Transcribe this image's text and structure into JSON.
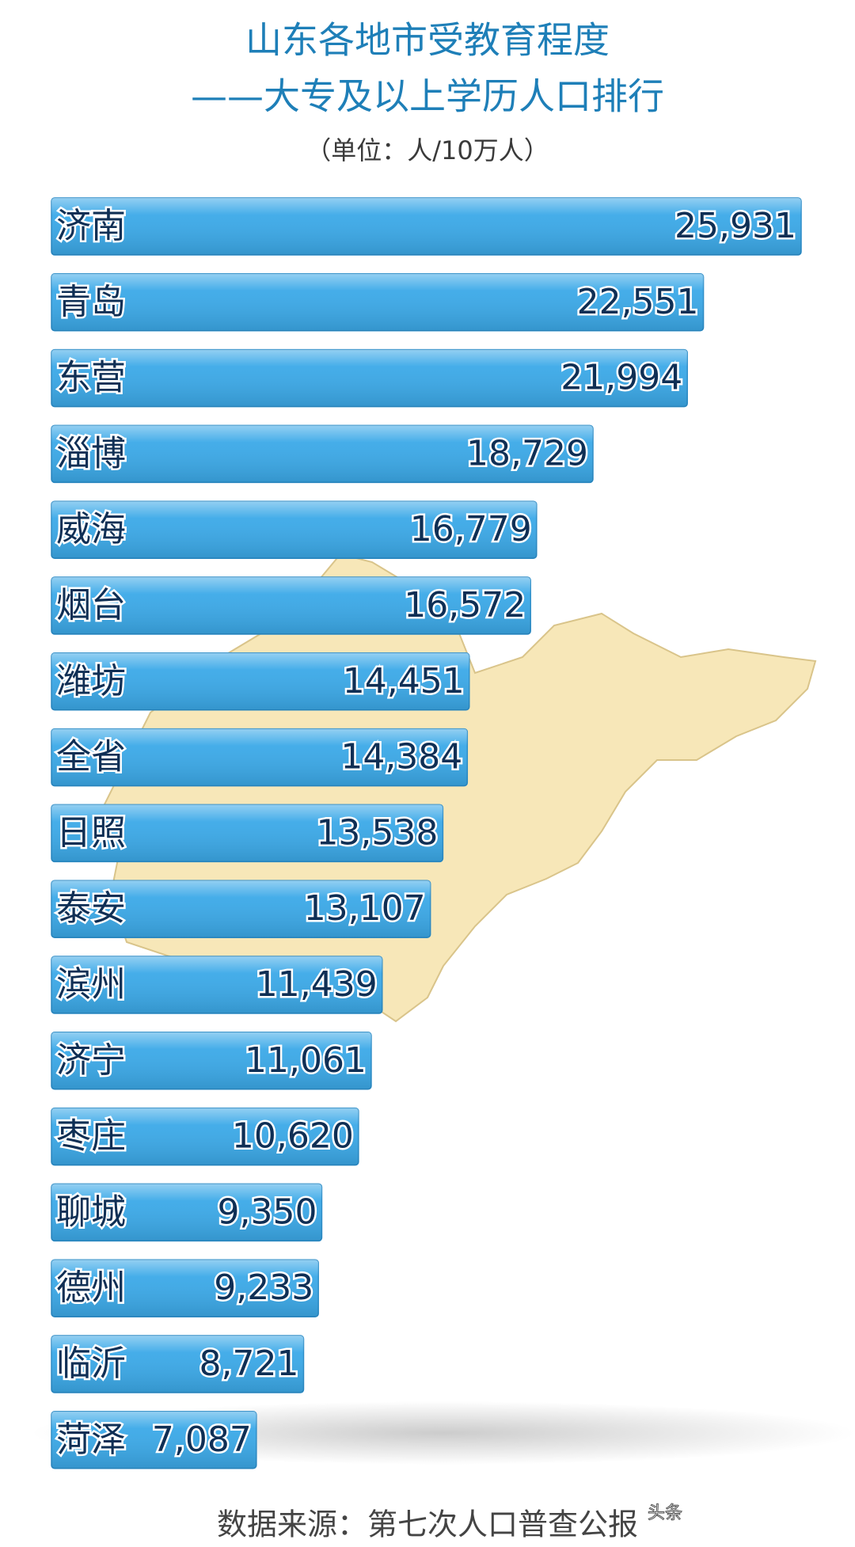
{
  "chart_data": {
    "type": "bar",
    "orientation": "horizontal",
    "title": "山东各地市受教育程度",
    "subtitle": "——大专及以上学历人口排行",
    "unit_note": "（单位：人/10万人）",
    "categories": [
      "济南",
      "青岛",
      "东营",
      "淄博",
      "威海",
      "烟台",
      "潍坊",
      "全省",
      "日照",
      "泰安",
      "滨州",
      "济宁",
      "枣庄",
      "聊城",
      "德州",
      "临沂",
      "菏泽"
    ],
    "values": [
      25931,
      22551,
      21994,
      18729,
      16779,
      16572,
      14451,
      14384,
      13538,
      13107,
      11439,
      11061,
      10620,
      9350,
      9233,
      8721,
      7087
    ],
    "value_labels": [
      "25,931",
      "22,551",
      "21,994",
      "18,729",
      "16,779",
      "16,572",
      "14,451",
      "14,384",
      "13,538",
      "13,107",
      "11,439",
      "11,061",
      "10,620",
      "9,350",
      "9,233",
      "8,721",
      "7,087"
    ],
    "color": "#3ba9e8",
    "source": "数据来源：第七次人口普查公报",
    "watermark": "头条"
  }
}
